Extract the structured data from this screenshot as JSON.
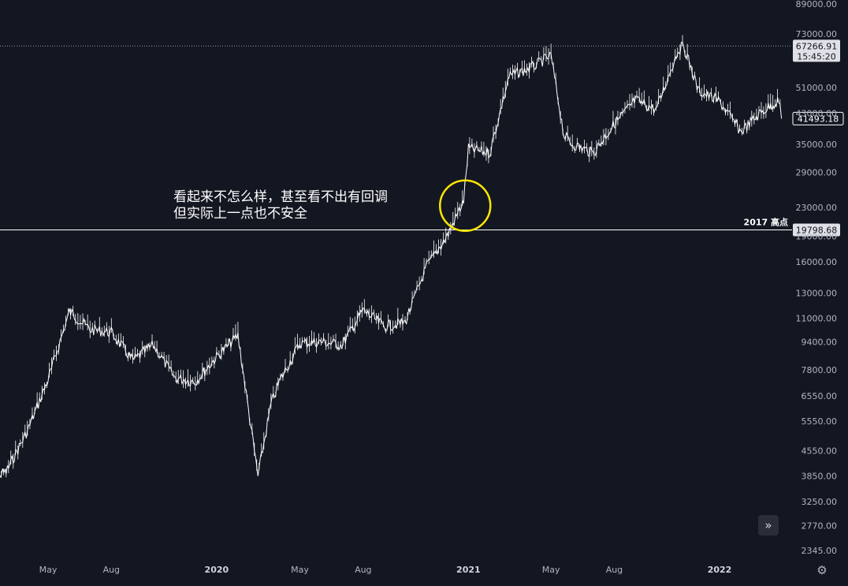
{
  "annotation": {
    "line1": "看起来不怎么样，甚至看不出有回调",
    "line2": "但实际上一点也不安全"
  },
  "icons": {
    "scroll": "chevrons-right-icon",
    "settings": "gear-icon"
  },
  "colors": {
    "background": "#131722",
    "price": "#ffffff",
    "marker": "#ffe600",
    "label_bg": "#dfe1e6"
  },
  "chart_data": {
    "type": "line",
    "scale": "log",
    "grid": false,
    "yticks": [
      89000,
      73000,
      51000,
      43000,
      35000,
      29000,
      23000,
      19000,
      16000,
      13000,
      11000,
      9400,
      7800,
      6550,
      5550,
      4550,
      3850,
      3250,
      2770,
      2345
    ],
    "ytick_labels": [
      "89000.00",
      "73000.00",
      "51000.00",
      "43000.00",
      "35000.00",
      "29000.00",
      "23000.00",
      "19000.00",
      "16000.00",
      "13000.00",
      "11000.00",
      "9400.00",
      "7800.00",
      "6550.00",
      "5550.00",
      "4550.00",
      "3850.00",
      "3250.00",
      "2770.00",
      "2345.00"
    ],
    "xticks": [
      {
        "label": "May",
        "x": "2019-05",
        "bold": false
      },
      {
        "label": "Aug",
        "x": "2019-08",
        "bold": false
      },
      {
        "label": "2020",
        "x": "2020-01",
        "bold": true
      },
      {
        "label": "May",
        "x": "2020-05",
        "bold": false
      },
      {
        "label": "Aug",
        "x": "2020-08",
        "bold": false
      },
      {
        "label": "2021",
        "x": "2021-01",
        "bold": true
      },
      {
        "label": "May",
        "x": "2021-05",
        "bold": false
      },
      {
        "label": "Aug",
        "x": "2021-08",
        "bold": false
      },
      {
        "label": "2022",
        "x": "2022-01",
        "bold": true
      }
    ],
    "series": [
      {
        "values": [
          [
            "2019-02",
            3800
          ],
          [
            "2019-03",
            3950
          ],
          [
            "2019-04",
            5200
          ],
          [
            "2019-05",
            7300
          ],
          [
            "2019-06",
            11500
          ],
          [
            "2019-07",
            10200
          ],
          [
            "2019-08",
            10000
          ],
          [
            "2019-09",
            8300
          ],
          [
            "2019-10",
            9200
          ],
          [
            "2019-11",
            7400
          ],
          [
            "2019-12",
            7200
          ],
          [
            "2020-01",
            8500
          ],
          [
            "2020-02",
            9800
          ],
          [
            "2020-03",
            3850
          ],
          [
            "2020-03-20",
            6200
          ],
          [
            "2020-04",
            7200
          ],
          [
            "2020-05",
            9300
          ],
          [
            "2020-06",
            9400
          ],
          [
            "2020-07",
            9200
          ],
          [
            "2020-08",
            11600
          ],
          [
            "2020-09",
            10400
          ],
          [
            "2020-10",
            10700
          ],
          [
            "2020-11",
            15500
          ],
          [
            "2020-12",
            19000
          ],
          [
            "2020-12-25",
            24000
          ],
          [
            "2021-01",
            34000
          ],
          [
            "2021-02",
            33000
          ],
          [
            "2021-03",
            55000
          ],
          [
            "2021-04",
            58000
          ],
          [
            "2021-05",
            63000
          ],
          [
            "2021-05-20",
            37000
          ],
          [
            "2021-06",
            35000
          ],
          [
            "2021-07",
            33000
          ],
          [
            "2021-08",
            40000
          ],
          [
            "2021-09",
            47000
          ],
          [
            "2021-10",
            44000
          ],
          [
            "2021-11",
            65000
          ],
          [
            "2021-11-10",
            67500
          ],
          [
            "2021-12",
            50000
          ],
          [
            "2022-01",
            46500
          ],
          [
            "2022-02",
            38000
          ],
          [
            "2022-03",
            43000
          ],
          [
            "2022-03-28",
            47000
          ],
          [
            "2022-04",
            41493
          ]
        ]
      }
    ],
    "markers": [
      {
        "type": "hline",
        "y": 67266.91,
        "label": "67266.91",
        "sublabel": "15:45:20",
        "style": "dotted"
      },
      {
        "type": "hline",
        "y": 19798.68,
        "label": "19798.68",
        "text": "2017 高点",
        "style": "solid"
      },
      {
        "type": "price",
        "y": 41493.18,
        "label": "41493.18"
      },
      {
        "type": "circle",
        "x": "2020-12-25",
        "y": 24000
      }
    ]
  }
}
